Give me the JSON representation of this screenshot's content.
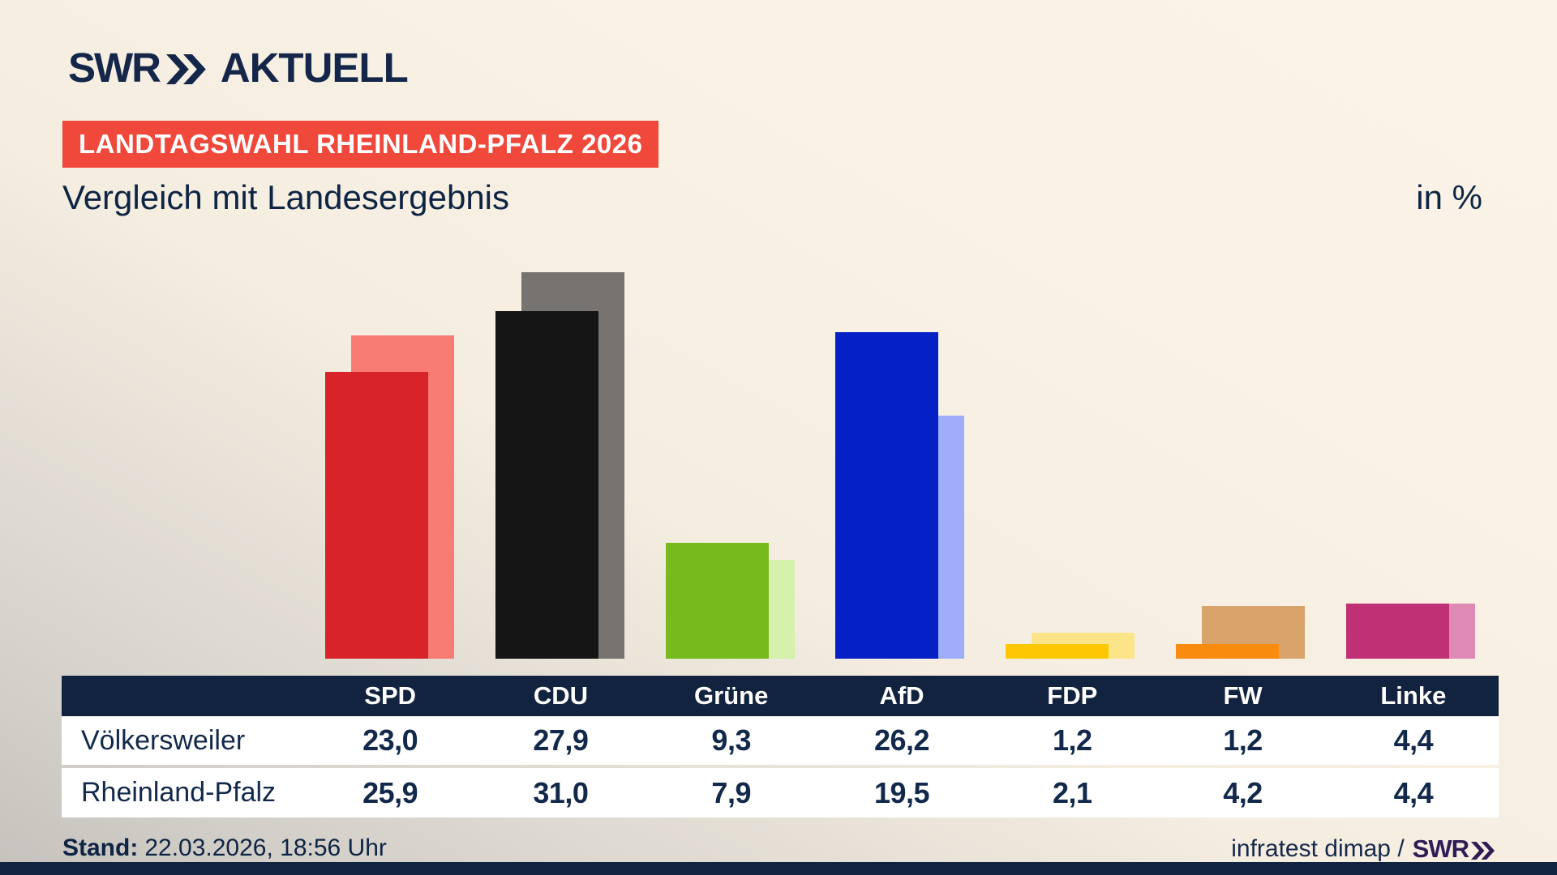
{
  "brand": {
    "logo": "SWR",
    "logo_suffix": "AKTUELL"
  },
  "badge": {
    "text": "LANDTAGSWAHL RHEINLAND-PFALZ 2026",
    "bg": "#f0483a"
  },
  "header": {
    "title": "Vergleich mit Landesergebnis",
    "unit": "in %"
  },
  "colors": {
    "navy": "#12233f",
    "text_navy": "#0e2444",
    "background_cream": "#f8f1e4",
    "background_gray": "#c5c2bd",
    "badge_red": "#f0483a",
    "footer_brand_purple": "#2e1d55"
  },
  "chart_data": {
    "type": "bar",
    "categories": [
      "SPD",
      "CDU",
      "Grüne",
      "AfD",
      "FDP",
      "FW",
      "Linke"
    ],
    "series": [
      {
        "name": "Völkersweiler",
        "role": "front",
        "values": [
          23.0,
          27.9,
          9.3,
          26.2,
          1.2,
          1.2,
          4.4
        ],
        "colors": [
          "#d8232a",
          "#151515",
          "#77ba1d",
          "#0521c6",
          "#fdc802",
          "#f98c0e",
          "#bf3174"
        ]
      },
      {
        "name": "Rheinland-Pfalz",
        "role": "back",
        "values": [
          25.9,
          31.0,
          7.9,
          19.5,
          2.1,
          4.2,
          4.4
        ],
        "colors": [
          "#f97c74",
          "#767371",
          "#d6f1ab",
          "#9fadf8",
          "#fce489",
          "#d9a46c",
          "#de8ab5"
        ]
      }
    ],
    "title": "Vergleich mit Landesergebnis",
    "unit": "in %",
    "ylim": [
      0,
      31
    ],
    "grid": false,
    "legend": "none",
    "axis_labels": "none"
  },
  "table": {
    "columns": [
      "SPD",
      "CDU",
      "Grüne",
      "AfD",
      "FDP",
      "FW",
      "Linke"
    ],
    "rows": [
      {
        "label": "Völkersweiler",
        "values": [
          "23,0",
          "27,9",
          "9,3",
          "26,2",
          "1,2",
          "1,2",
          "4,4"
        ]
      },
      {
        "label": "Rheinland-Pfalz",
        "values": [
          "25,9",
          "31,0",
          "7,9",
          "19,5",
          "2,1",
          "4,2",
          "4,4"
        ]
      }
    ]
  },
  "footer": {
    "stand_label": "Stand:",
    "stand_value": "22.03.2026, 18:56 Uhr",
    "source_text": "infratest dimap /",
    "source_brand": "SWR"
  }
}
